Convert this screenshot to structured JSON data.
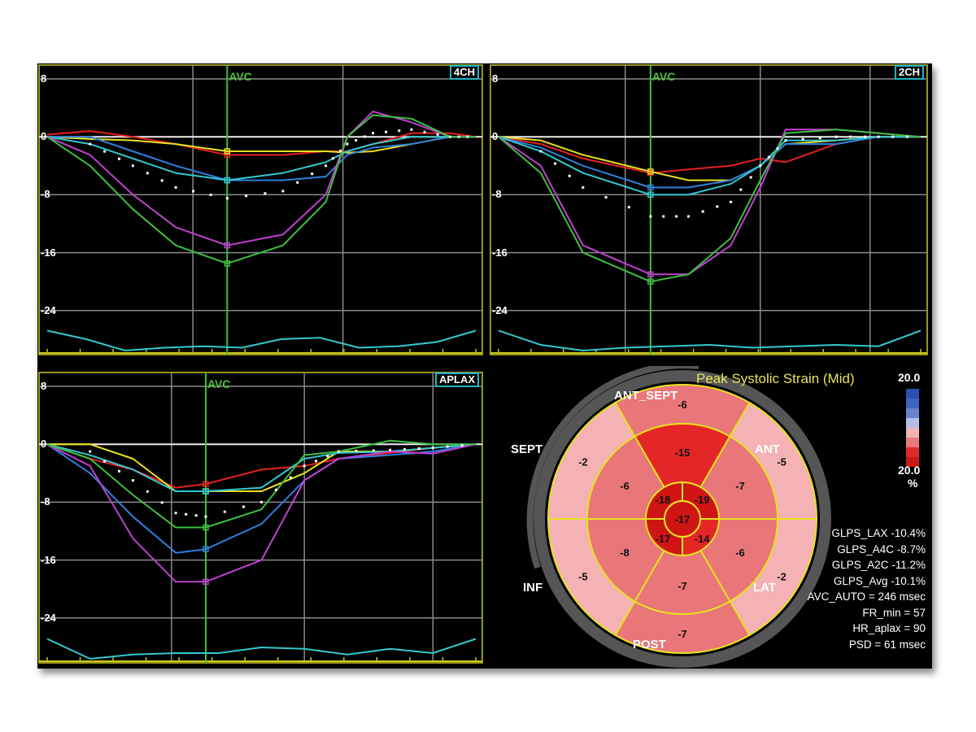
{
  "colors": {
    "red": "#e82020",
    "yellow": "#e8e020",
    "blue": "#2f7fe0",
    "cyan": "#33c8d0",
    "magenta": "#c040d0",
    "green": "#3cc040",
    "avg": "#ffffff",
    "grid": "#8a8a8a",
    "border": "#c8c820",
    "avc": "#3cc040"
  },
  "chart_data": [
    {
      "type": "line",
      "view": "4CH",
      "marker": "AVC",
      "avc_t": 0.42,
      "yticks": [
        "8",
        "0",
        "-8",
        "-16",
        "-24"
      ],
      "ylim": [
        -24,
        8
      ],
      "vgrid": [
        0.34,
        0.69
      ],
      "t": [
        0,
        0.1,
        0.2,
        0.3,
        0.42,
        0.55,
        0.65,
        0.7,
        0.76,
        0.85,
        0.94,
        1
      ],
      "series": [
        {
          "name": "red",
          "values": [
            0.3,
            0.8,
            0,
            -1,
            -2.5,
            -2.5,
            -2,
            -2,
            -1,
            0.5,
            0.5,
            0
          ]
        },
        {
          "name": "yellow",
          "values": [
            0,
            -0.3,
            -0.5,
            -1,
            -2,
            -2,
            -2,
            -2.2,
            -2,
            -1,
            0,
            0
          ]
        },
        {
          "name": "blue",
          "values": [
            0,
            0,
            -2,
            -4,
            -6,
            -6,
            -5.5,
            -2.5,
            -1.5,
            -1,
            0,
            0
          ]
        },
        {
          "name": "cyan",
          "values": [
            0,
            -1,
            -3,
            -5,
            -6,
            -5,
            -3.5,
            -2,
            -1,
            0,
            0,
            0
          ]
        },
        {
          "name": "magenta",
          "values": [
            0,
            -2.5,
            -8,
            -12.5,
            -15,
            -13.5,
            -8,
            0,
            3.5,
            2,
            0,
            0
          ]
        },
        {
          "name": "green",
          "values": [
            0,
            -4,
            -10,
            -15,
            -17.5,
            -15,
            -9,
            0,
            3,
            2.5,
            0,
            0
          ]
        },
        {
          "name": "avg",
          "values": [
            0,
            -1,
            -4,
            -7,
            -8.5,
            -7.5,
            -4,
            -1,
            0.5,
            1,
            0,
            0
          ]
        }
      ],
      "ecg": [
        0.3,
        0.6,
        1,
        0.9,
        0.85,
        0.9,
        0.6,
        0.55,
        0.9,
        0.85,
        0.7,
        0.3
      ]
    },
    {
      "type": "line",
      "view": "2CH",
      "marker": "AVC",
      "avc_t": 0.36,
      "yticks": [
        "8",
        "0",
        "-8",
        "-16",
        "-24"
      ],
      "ylim": [
        -24,
        8
      ],
      "vgrid": [
        0.3,
        0.62,
        0.88
      ],
      "t": [
        0,
        0.1,
        0.2,
        0.36,
        0.45,
        0.55,
        0.62,
        0.68,
        0.8,
        0.9,
        1
      ],
      "series": [
        {
          "name": "red",
          "values": [
            0,
            -1,
            -3,
            -5,
            -4.5,
            -4,
            -3,
            -3.5,
            -1,
            0,
            0
          ]
        },
        {
          "name": "yellow",
          "values": [
            0,
            -0.5,
            -2.5,
            -4.8,
            -6,
            -6,
            -4,
            -1,
            -0.5,
            0,
            0
          ]
        },
        {
          "name": "blue",
          "values": [
            0,
            -1.5,
            -4,
            -7,
            -7,
            -6,
            -4,
            -1,
            -1,
            0,
            0
          ]
        },
        {
          "name": "cyan",
          "values": [
            0,
            -2,
            -5,
            -8,
            -8,
            -6.5,
            -4,
            -0.5,
            -0.5,
            0,
            0
          ]
        },
        {
          "name": "magenta",
          "values": [
            0,
            -4,
            -15,
            -19,
            -19,
            -15,
            -7,
            1,
            1,
            0.5,
            0
          ]
        },
        {
          "name": "green",
          "values": [
            0,
            -5,
            -16,
            -20,
            -19,
            -14,
            -6,
            0.5,
            1,
            0.5,
            0
          ]
        },
        {
          "name": "avg",
          "values": [
            0,
            -2,
            -7,
            -11,
            -11,
            -9,
            -4,
            -0.5,
            0,
            0,
            0
          ]
        }
      ],
      "ecg": [
        0.3,
        0.8,
        1,
        0.9,
        0.85,
        0.8,
        0.9,
        0.85,
        0.8,
        0.85,
        0.3
      ]
    },
    {
      "type": "line",
      "view": "APLAX",
      "marker": "AVC",
      "avc_t": 0.37,
      "yticks": [
        "8",
        "0",
        "-8",
        "-16",
        "-24"
      ],
      "ylim": [
        -24,
        8
      ],
      "vgrid": [
        0.29,
        0.6,
        0.9
      ],
      "t": [
        0,
        0.1,
        0.2,
        0.3,
        0.37,
        0.5,
        0.6,
        0.68,
        0.8,
        0.9,
        1
      ],
      "series": [
        {
          "name": "red",
          "values": [
            0,
            -2,
            -3.5,
            -6,
            -5.5,
            -3.5,
            -3,
            -2,
            -1.2,
            -0.5,
            0
          ]
        },
        {
          "name": "yellow",
          "values": [
            0,
            0,
            -2,
            -6.5,
            -6.5,
            -6.5,
            -4,
            -1,
            -1,
            -0.5,
            0
          ]
        },
        {
          "name": "blue",
          "values": [
            0,
            -4,
            -10,
            -15,
            -14.5,
            -11,
            -5,
            -2,
            -1.5,
            -1,
            0
          ]
        },
        {
          "name": "cyan",
          "values": [
            0,
            -1.5,
            -3.5,
            -6.5,
            -6.5,
            -6,
            -2,
            -1.2,
            -1,
            -0.5,
            0
          ]
        },
        {
          "name": "magenta",
          "values": [
            0,
            -3,
            -13,
            -19,
            -19,
            -16,
            -5,
            -2,
            -1,
            -1.3,
            0
          ]
        },
        {
          "name": "green",
          "values": [
            0,
            -2,
            -7,
            -11.5,
            -11.5,
            -9,
            -1.5,
            -1,
            0.5,
            0,
            0
          ]
        },
        {
          "name": "avg",
          "values": [
            0,
            -1,
            -5,
            -9.5,
            -10,
            -8,
            -3,
            -1,
            -0.8,
            -0.5,
            0
          ]
        }
      ],
      "ecg": [
        0.3,
        1,
        0.85,
        0.8,
        0.8,
        0.6,
        0.65,
        0.85,
        0.65,
        0.8,
        0.3
      ]
    }
  ],
  "bullseye": {
    "title": "Peak Systolic Strain (Mid)",
    "labels": {
      "ant_sept": "ANT_SEPT",
      "ant": "ANT",
      "lat": "LAT",
      "post": "POST",
      "inf": "INF",
      "sept": "SEPT"
    },
    "scale_top": "20.0",
    "scale_bottom": "20.0",
    "scale_unit": "%",
    "basal": [
      "-6",
      "-5",
      "-2",
      "-7",
      "-5",
      "-2"
    ],
    "mid": [
      "-15",
      "-7",
      "-6",
      "-7",
      "-8",
      "-6"
    ],
    "apical": [
      "-19",
      "-14",
      "-17",
      "-18"
    ],
    "apex": "-17"
  },
  "stats": [
    "GLPS_LAX  -10.4%",
    "GLPS_A4C  -8.7%",
    "GLPS_A2C  -11.2%",
    "GLPS_Avg  -10.1%",
    "AVC_AUTO = 246 msec",
    "FR_min = 57",
    "HR_aplax = 90",
    "PSD = 61 msec"
  ]
}
